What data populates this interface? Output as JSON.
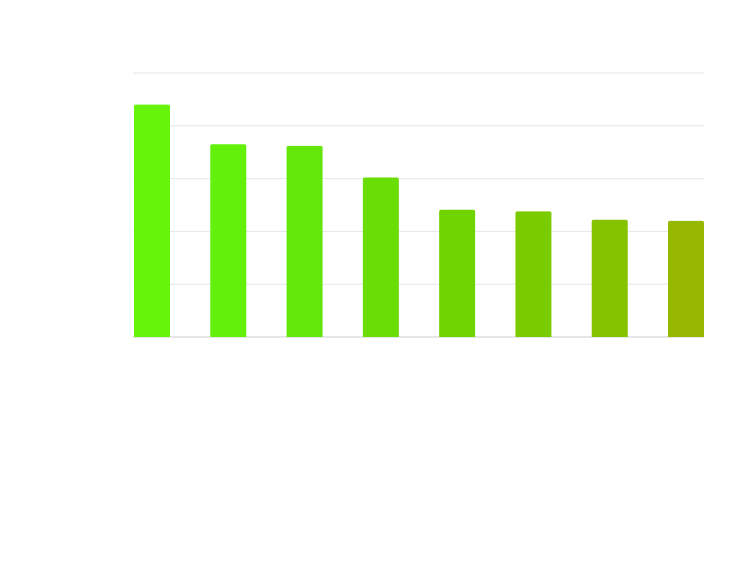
{
  "chart_data": {
    "type": "bar",
    "categories": [
      null,
      null,
      null,
      null,
      null,
      null,
      null,
      null
    ],
    "values": [
      4.4,
      3.65,
      3.62,
      3.02,
      2.41,
      2.38,
      2.22,
      2.2
    ],
    "colors": [
      "#66f50a",
      "#63f00a",
      "#63e60a",
      "#6ade04",
      "#70d400",
      "#7acc00",
      "#85c200",
      "#96b800"
    ],
    "ylim": [
      0,
      5
    ],
    "yticks": [
      0,
      1,
      2,
      3,
      4,
      5
    ],
    "grid": true
  }
}
